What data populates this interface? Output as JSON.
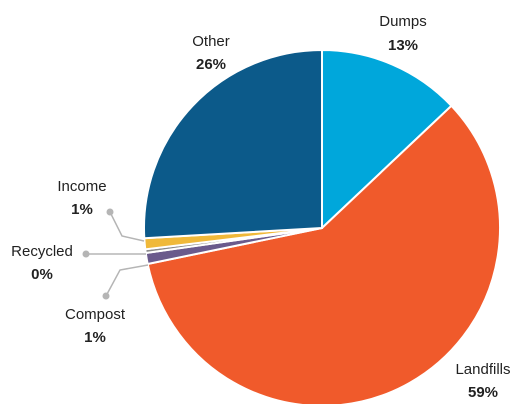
{
  "chart_data": {
    "type": "pie",
    "slices": [
      {
        "label": "Dumps",
        "value": 13,
        "display": "13%",
        "color": "#00a7db"
      },
      {
        "label": "Landfills",
        "value": 59,
        "display": "59%",
        "color": "#f05a2b"
      },
      {
        "label": "Compost",
        "value": 1,
        "display": "1%",
        "color": "#6a5a8c"
      },
      {
        "label": "Recycled",
        "value": 0,
        "display": "0%",
        "color": "#8a8a8a"
      },
      {
        "label": "Income",
        "value": 1,
        "display": "1%",
        "color": "#f0b93a"
      },
      {
        "label": "Other",
        "value": 26,
        "display": "26%",
        "color": "#0c5a8a"
      }
    ],
    "title": "",
    "legend": "none"
  }
}
